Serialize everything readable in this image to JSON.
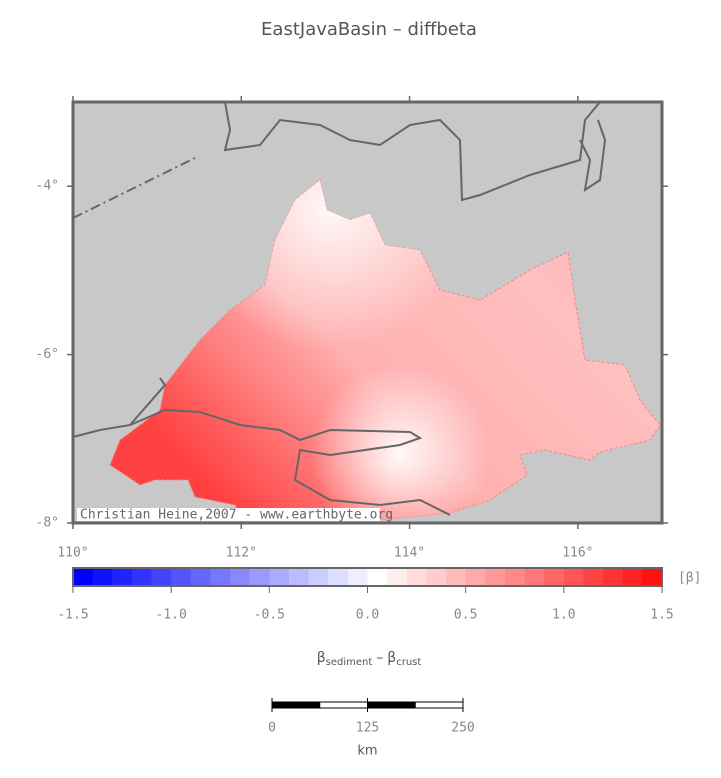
{
  "title": "EastJavaBasin – diffbeta",
  "map": {
    "xlim": [
      110,
      117
    ],
    "ylim": [
      -8,
      -3
    ],
    "xticks": [
      {
        "value": 110,
        "label": "110°"
      },
      {
        "value": 112,
        "label": "112°"
      },
      {
        "value": 114,
        "label": "114°"
      },
      {
        "value": 116,
        "label": "116°"
      }
    ],
    "yticks": [
      {
        "value": -4,
        "label": "-4°"
      },
      {
        "value": -6,
        "label": "-6°"
      },
      {
        "value": -8,
        "label": "-8°"
      }
    ],
    "credit": "Christian Heine,2007 - www.earthbyte.org"
  },
  "colorbar": {
    "lim": [
      -1.5,
      1.5
    ],
    "ticks": [
      -1.5,
      {
        "value": -1,
        "label": "-1.0"
      },
      -0.5,
      {
        "value": 0,
        "label": "0.0"
      },
      0.5,
      {
        "value": 1,
        "label": "1.0"
      },
      1.5
    ],
    "unit": "[β]",
    "label_parts": [
      "β",
      "sediment",
      "–",
      "β",
      "crust"
    ],
    "colors": [
      "#0000ff",
      "#1111ff",
      "#2222ff",
      "#3333ff",
      "#4444ff",
      "#5555ff",
      "#6666ff",
      "#7777ff",
      "#8888ff",
      "#9999ff",
      "#aaaaff",
      "#bbbbff",
      "#ccccff",
      "#ddddff",
      "#eeeeff",
      "#ffffff",
      "#ffeeee",
      "#ffdddd",
      "#ffcccc",
      "#ffbbbb",
      "#ffaaaa",
      "#ff9999",
      "#ff8888",
      "#ff7777",
      "#ff6666",
      "#ff5555",
      "#ff4444",
      "#ff3333",
      "#ff2222",
      "#ff1111"
    ]
  },
  "scalebar": {
    "ticks": [
      0,
      125,
      250
    ],
    "unit": "km"
  }
}
